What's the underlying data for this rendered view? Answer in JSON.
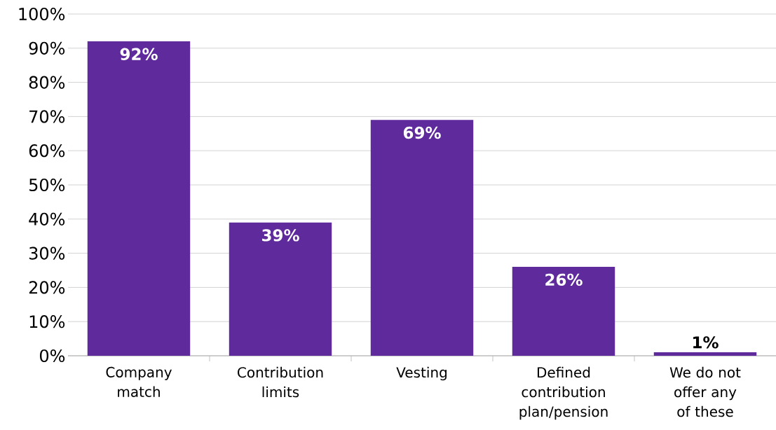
{
  "chart_data": {
    "type": "bar",
    "categories": [
      "Company match",
      "Contribution limits",
      "Vesting",
      "Defined contribution plan/pension",
      "We do not offer any of these"
    ],
    "values": [
      92,
      39,
      69,
      26,
      1
    ],
    "value_labels": [
      "92%",
      "39%",
      "69%",
      "26%",
      "1%"
    ],
    "color": "#5e2a9c",
    "ylim": [
      0,
      100
    ],
    "yticks": [
      {
        "value": 0,
        "label": "0%"
      },
      {
        "value": 10,
        "label": "10%"
      },
      {
        "value": 20,
        "label": "20%"
      },
      {
        "value": 30,
        "label": "30%"
      },
      {
        "value": 40,
        "label": "40%"
      },
      {
        "value": 50,
        "label": "50%"
      },
      {
        "value": 60,
        "label": "60%"
      },
      {
        "value": 70,
        "label": "70%"
      },
      {
        "value": 80,
        "label": "80%"
      },
      {
        "value": 90,
        "label": "90%"
      },
      {
        "value": 100,
        "label": "100%"
      }
    ],
    "grid": "y"
  }
}
